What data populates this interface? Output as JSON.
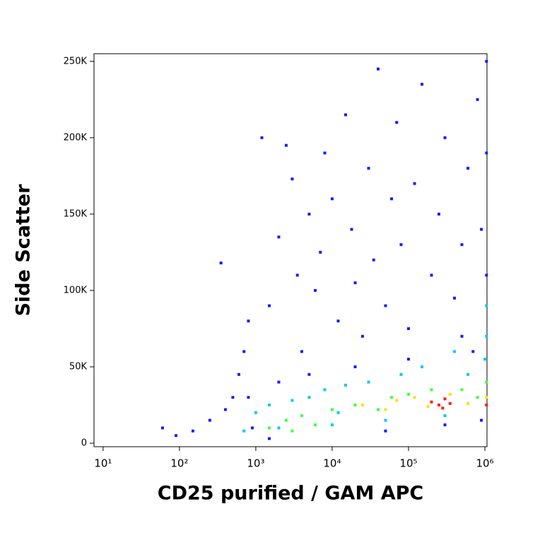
{
  "chart_data": {
    "type": "scatter",
    "x_label": "CD25 purified / GAM APC",
    "y_label": "Side Scatter",
    "x_scale": "log",
    "xlim": [
      7.6,
      1066000
    ],
    "xticks": [
      {
        "value": 10,
        "label": "10¹"
      },
      {
        "value": 100,
        "label": "10²"
      },
      {
        "value": 1000,
        "label": "10³"
      },
      {
        "value": 10000,
        "label": "10⁴"
      },
      {
        "value": 100000,
        "label": "10⁵"
      },
      {
        "value": 1000000,
        "label": "10⁶"
      }
    ],
    "ylim": [
      -2300,
      255000
    ],
    "yticks": [
      0,
      {
        "value": 50000,
        "label": "50K"
      },
      {
        "value": 100000,
        "label": "100K"
      },
      {
        "value": 150000,
        "label": "150K"
      },
      {
        "value": 200000,
        "label": "200K"
      },
      {
        "value": 250000,
        "label": "250K"
      }
    ],
    "series": [
      {
        "color": "#1a1aff",
        "x": [
          60,
          90,
          150,
          250,
          350,
          400,
          500,
          600,
          700,
          800,
          900,
          1200,
          1500,
          2000,
          2500,
          3000,
          3500,
          4000,
          5000,
          6000,
          7000,
          8000,
          10000,
          12000,
          15000,
          18000,
          20000,
          25000,
          30000,
          35000,
          40000,
          50000,
          60000,
          70000,
          80000,
          100000,
          120000,
          150000,
          200000,
          250000,
          300000,
          400000,
          500000,
          600000,
          700000,
          800000,
          900000,
          1050000,
          1050000,
          1050000,
          5000,
          20000,
          100000,
          500000,
          2000,
          800,
          1500,
          50000,
          300000,
          900000
        ],
        "values": [
          10000,
          5000,
          8000,
          15000,
          118000,
          22000,
          30000,
          45000,
          60000,
          80000,
          10000,
          200000,
          90000,
          135000,
          195000,
          173000,
          110000,
          60000,
          150000,
          100000,
          125000,
          190000,
          160000,
          80000,
          215000,
          140000,
          105000,
          70000,
          180000,
          120000,
          245000,
          90000,
          160000,
          210000,
          130000,
          75000,
          170000,
          235000,
          110000,
          150000,
          200000,
          95000,
          130000,
          180000,
          60000,
          225000,
          140000,
          250000,
          190000,
          110000,
          45000,
          50000,
          55000,
          70000,
          40000,
          30000,
          3000,
          8000,
          12000,
          15000
        ]
      },
      {
        "color": "#00c8ff",
        "x": [
          1000,
          1500,
          2000,
          3000,
          5000,
          8000,
          10000,
          15000,
          30000,
          50000,
          80000,
          150000,
          300000,
          600000,
          1000000,
          1050000,
          1050000,
          700,
          12000,
          400000
        ],
        "values": [
          20000,
          25000,
          10000,
          28000,
          30000,
          35000,
          12000,
          38000,
          40000,
          15000,
          45000,
          50000,
          18000,
          45000,
          55000,
          70000,
          90000,
          8000,
          20000,
          60000
        ]
      },
      {
        "color": "#40ff40",
        "x": [
          1500,
          2500,
          4000,
          6000,
          10000,
          20000,
          40000,
          60000,
          100000,
          200000,
          500000,
          800000,
          1050000,
          3000
        ],
        "values": [
          10000,
          15000,
          18000,
          12000,
          22000,
          25000,
          22000,
          30000,
          32000,
          35000,
          35000,
          30000,
          40000,
          8000
        ]
      },
      {
        "color": "#ffe000",
        "x": [
          25000,
          50000,
          70000,
          120000,
          180000,
          350000,
          600000,
          1050000
        ],
        "values": [
          25000,
          22000,
          28000,
          30000,
          24000,
          32000,
          26000,
          30000
        ]
      },
      {
        "color": "#ff2000",
        "x": [
          200000,
          250000,
          300000,
          350000,
          280000,
          1050000
        ],
        "values": [
          27000,
          25000,
          29000,
          26000,
          23000,
          25000
        ]
      }
    ]
  }
}
